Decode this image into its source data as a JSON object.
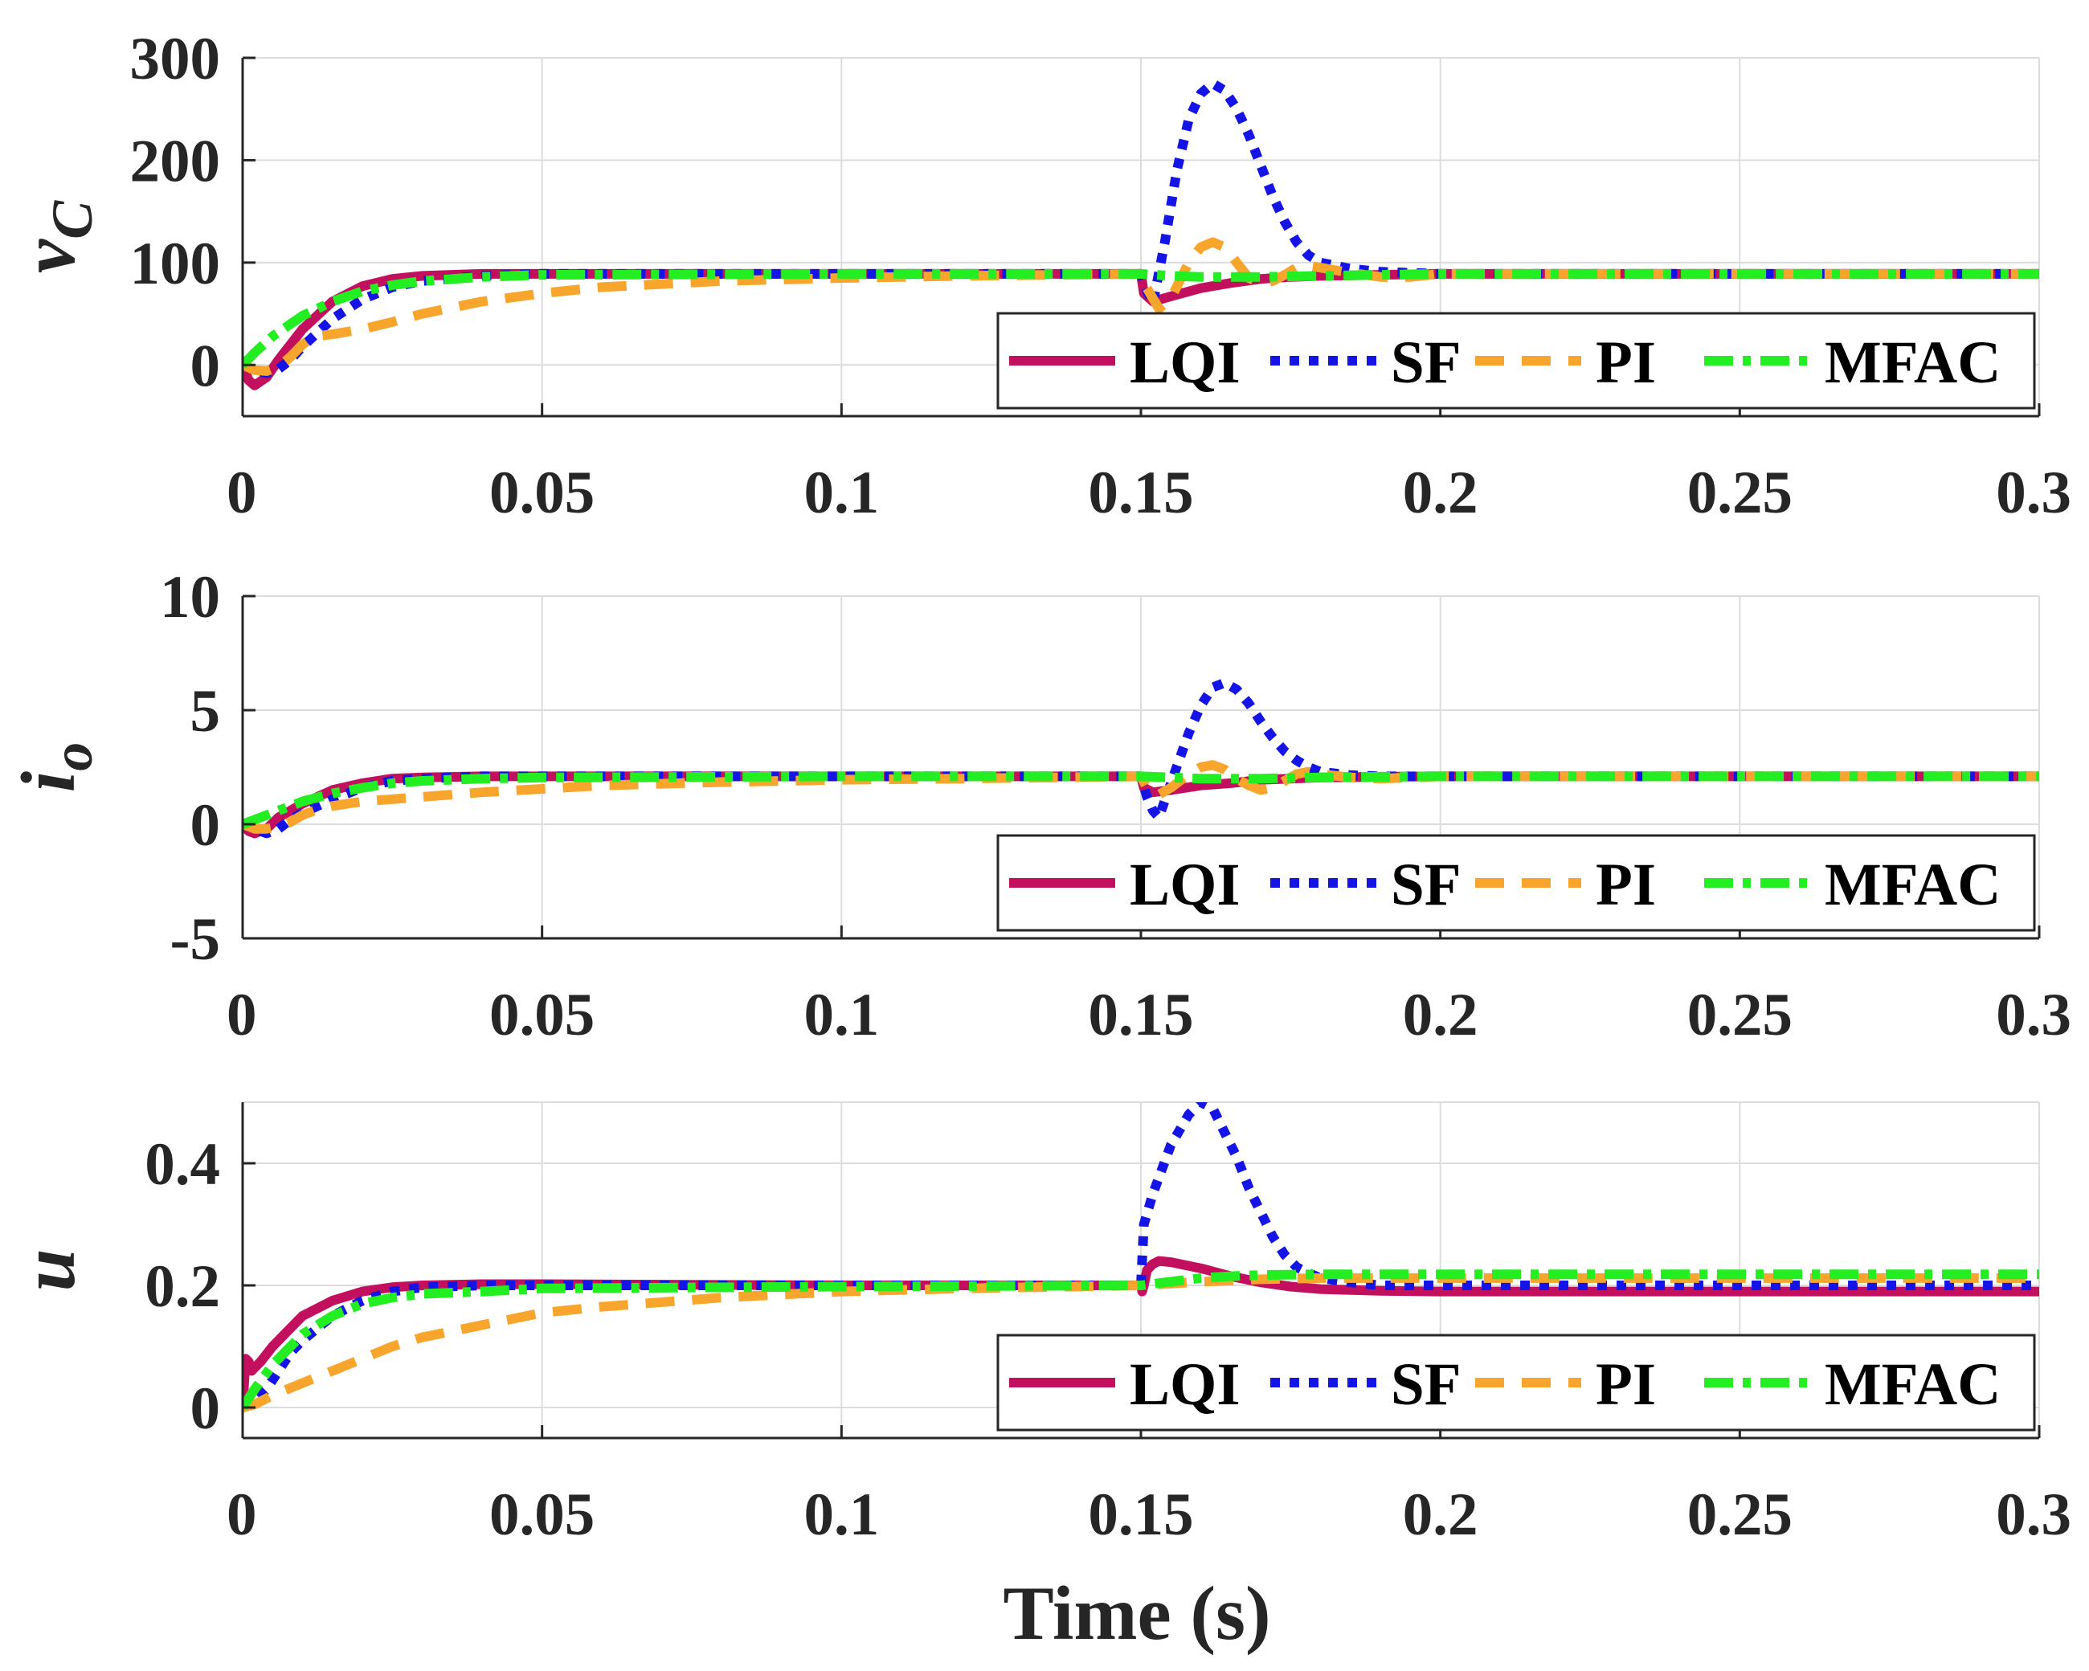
{
  "chart_data": {
    "type": "line",
    "xlabel": "Time (s)",
    "x_unit": "s",
    "xlim": [
      0,
      0.3
    ],
    "xticks": [
      0,
      0.05,
      0.1,
      0.15,
      0.2,
      0.25,
      0.3
    ],
    "xtick_labels": [
      "0",
      "0.05",
      "0.1",
      "0.15",
      "0.2",
      "0.25",
      "0.3"
    ],
    "grid": true,
    "legend": {
      "position": "bottom-right",
      "entries": [
        "LQI",
        "SF",
        "PI",
        "MFAC"
      ]
    },
    "series_styles": {
      "LQI": {
        "color": "#C2105F",
        "dash": "solid"
      },
      "SF": {
        "color": "#1414E6",
        "dash": "dotted"
      },
      "PI": {
        "color": "#F7A52C",
        "dash": "dashed"
      },
      "MFAC": {
        "color": "#22EE22",
        "dash": "dashdot"
      }
    },
    "subplots": [
      {
        "ylabel": "v",
        "ylabel_sub": "C",
        "ylim": [
          -50,
          300
        ],
        "yticks": [
          0,
          100,
          200,
          300
        ],
        "ytick_labels": [
          "0",
          "100",
          "200",
          "300"
        ],
        "series": [
          {
            "name": "LQI",
            "x": [
              0,
              0.001,
              0.002,
              0.004,
              0.006,
              0.01,
              0.015,
              0.02,
              0.025,
              0.03,
              0.04,
              0.05,
              0.1,
              0.15,
              0.1505,
              0.152,
              0.155,
              0.16,
              0.165,
              0.17,
              0.175,
              0.18,
              0.19,
              0.2,
              0.25,
              0.3
            ],
            "y": [
              0,
              -15,
              -20,
              -12,
              5,
              35,
              62,
              77,
              84,
              87,
              89,
              89,
              89,
              89,
              70,
              62,
              67,
              75,
              80,
              84,
              86,
              87,
              88,
              89,
              89,
              89
            ]
          },
          {
            "name": "SF",
            "x": [
              0,
              0.002,
              0.004,
              0.006,
              0.008,
              0.01,
              0.015,
              0.02,
              0.025,
              0.03,
              0.04,
              0.05,
              0.1,
              0.15,
              0.151,
              0.152,
              0.154,
              0.156,
              0.158,
              0.16,
              0.162,
              0.164,
              0.166,
              0.168,
              0.17,
              0.172,
              0.174,
              0.176,
              0.178,
              0.18,
              0.185,
              0.19,
              0.2,
              0.25,
              0.3
            ],
            "y": [
              0,
              -5,
              -8,
              -4,
              5,
              18,
              45,
              64,
              76,
              82,
              87,
              89,
              89,
              89,
              72,
              60,
              120,
              190,
              240,
              265,
              275,
              268,
              250,
              225,
              195,
              165,
              140,
              120,
              107,
              100,
              94,
              91,
              89,
              89,
              89
            ]
          },
          {
            "name": "PI",
            "x": [
              0,
              0.002,
              0.004,
              0.006,
              0.008,
              0.01,
              0.012,
              0.015,
              0.02,
              0.025,
              0.03,
              0.04,
              0.05,
              0.06,
              0.08,
              0.1,
              0.12,
              0.15,
              0.151,
              0.153,
              0.155,
              0.158,
              0.16,
              0.162,
              0.164,
              0.166,
              0.168,
              0.17,
              0.172,
              0.174,
              0.176,
              0.178,
              0.18,
              0.185,
              0.19,
              0.195,
              0.2,
              0.25,
              0.3
            ],
            "y": [
              0,
              -5,
              -6,
              -2,
              8,
              20,
              28,
              30,
              35,
              42,
              50,
              62,
              70,
              76,
              82,
              85,
              87,
              89,
              75,
              55,
              65,
              100,
              115,
              120,
              115,
              100,
              85,
              80,
              82,
              88,
              95,
              97,
              95,
              90,
              86,
              86,
              89,
              89,
              89
            ]
          },
          {
            "name": "MFAC",
            "x": [
              0,
              0.002,
              0.005,
              0.01,
              0.015,
              0.02,
              0.025,
              0.03,
              0.04,
              0.05,
              0.1,
              0.15,
              0.155,
              0.16,
              0.17,
              0.18,
              0.19,
              0.2,
              0.25,
              0.3
            ],
            "y": [
              0,
              12,
              28,
              48,
              62,
              72,
              78,
              82,
              86,
              88,
              89,
              89,
              87,
              86,
              86,
              87,
              88,
              89,
              89,
              89
            ]
          }
        ]
      },
      {
        "ylabel": "i",
        "ylabel_sub": "o",
        "ylim": [
          -5,
          10
        ],
        "yticks": [
          -5,
          0,
          5,
          10
        ],
        "ytick_labels": [
          "-5",
          "0",
          "5",
          "10"
        ],
        "series": [
          {
            "name": "LQI",
            "x": [
              0,
              0.001,
              0.002,
              0.004,
              0.006,
              0.01,
              0.015,
              0.02,
              0.025,
              0.03,
              0.04,
              0.05,
              0.1,
              0.15,
              0.1505,
              0.152,
              0.155,
              0.16,
              0.165,
              0.17,
              0.175,
              0.18,
              0.19,
              0.2,
              0.25,
              0.3
            ],
            "y": [
              0,
              -0.3,
              -0.4,
              -0.2,
              0.3,
              0.9,
              1.5,
              1.8,
              2.0,
              2.05,
              2.1,
              2.1,
              2.1,
              2.1,
              1.6,
              1.4,
              1.5,
              1.7,
              1.8,
              1.95,
              2.0,
              2.05,
              2.08,
              2.1,
              2.1,
              2.1
            ]
          },
          {
            "name": "SF",
            "x": [
              0,
              0.002,
              0.004,
              0.006,
              0.008,
              0.01,
              0.015,
              0.02,
              0.025,
              0.03,
              0.04,
              0.05,
              0.1,
              0.15,
              0.151,
              0.152,
              0.153,
              0.155,
              0.158,
              0.16,
              0.162,
              0.164,
              0.166,
              0.168,
              0.17,
              0.172,
              0.174,
              0.176,
              0.178,
              0.18,
              0.185,
              0.19,
              0.2,
              0.25,
              0.3
            ],
            "y": [
              0,
              -0.2,
              -0.4,
              -0.2,
              0.2,
              0.5,
              1.1,
              1.6,
              1.9,
              2.0,
              2.1,
              2.1,
              2.1,
              2.1,
              1.2,
              0.6,
              0.3,
              1.8,
              4.0,
              5.2,
              6.0,
              6.2,
              5.9,
              5.3,
              4.5,
              3.8,
              3.2,
              2.8,
              2.5,
              2.3,
              2.15,
              2.1,
              2.1,
              2.1,
              2.1
            ]
          },
          {
            "name": "PI",
            "x": [
              0,
              0.002,
              0.004,
              0.006,
              0.008,
              0.01,
              0.012,
              0.015,
              0.02,
              0.025,
              0.03,
              0.04,
              0.05,
              0.06,
              0.08,
              0.1,
              0.12,
              0.15,
              0.151,
              0.153,
              0.155,
              0.158,
              0.16,
              0.162,
              0.164,
              0.166,
              0.168,
              0.17,
              0.172,
              0.174,
              0.176,
              0.178,
              0.18,
              0.185,
              0.19,
              0.195,
              0.2,
              0.25,
              0.3
            ],
            "y": [
              0,
              -0.2,
              -0.2,
              -0.1,
              0.1,
              0.4,
              0.6,
              0.8,
              1.0,
              1.1,
              1.2,
              1.4,
              1.55,
              1.7,
              1.85,
              1.95,
              2.0,
              2.1,
              1.6,
              1.3,
              1.6,
              2.2,
              2.5,
              2.6,
              2.4,
              2.0,
              1.7,
              1.5,
              1.6,
              1.9,
              2.2,
              2.3,
              2.2,
              2.05,
              2.0,
              2.05,
              2.1,
              2.1,
              2.1
            ]
          },
          {
            "name": "MFAC",
            "x": [
              0,
              0.002,
              0.005,
              0.01,
              0.015,
              0.02,
              0.025,
              0.03,
              0.04,
              0.05,
              0.1,
              0.15,
              0.155,
              0.16,
              0.17,
              0.18,
              0.19,
              0.2,
              0.25,
              0.3
            ],
            "y": [
              0,
              0.2,
              0.5,
              1.0,
              1.35,
              1.6,
              1.8,
              1.9,
              2.0,
              2.05,
              2.1,
              2.1,
              2.05,
              2.0,
              2.0,
              2.05,
              2.08,
              2.1,
              2.1,
              2.1
            ]
          }
        ]
      },
      {
        "ylabel": "u",
        "ylabel_sub": "",
        "ylim": [
          -0.05,
          0.5
        ],
        "yticks": [
          0,
          0.2,
          0.4
        ],
        "ytick_labels": [
          "0",
          "0.2",
          "0.4"
        ],
        "series": [
          {
            "name": "LQI",
            "x": [
              0,
              0.0005,
              0.001,
              0.0015,
              0.002,
              0.003,
              0.005,
              0.008,
              0.01,
              0.015,
              0.02,
              0.025,
              0.03,
              0.04,
              0.05,
              0.1,
              0.15,
              0.1502,
              0.1505,
              0.151,
              0.152,
              0.153,
              0.155,
              0.16,
              0.165,
              0.17,
              0.175,
              0.18,
              0.19,
              0.2,
              0.25,
              0.3
            ],
            "y": [
              0,
              0.08,
              0.075,
              0.06,
              0.065,
              0.075,
              0.1,
              0.13,
              0.15,
              0.175,
              0.19,
              0.197,
              0.2,
              0.202,
              0.202,
              0.2,
              0.2,
              0.19,
              0.2,
              0.225,
              0.235,
              0.24,
              0.238,
              0.228,
              0.215,
              0.205,
              0.198,
              0.194,
              0.191,
              0.19,
              0.19,
              0.19
            ]
          },
          {
            "name": "SF",
            "x": [
              0,
              0.002,
              0.004,
              0.006,
              0.008,
              0.01,
              0.015,
              0.02,
              0.025,
              0.03,
              0.04,
              0.05,
              0.1,
              0.15,
              0.1505,
              0.152,
              0.155,
              0.158,
              0.16,
              0.162,
              0.164,
              0.166,
              0.168,
              0.17,
              0.172,
              0.174,
              0.176,
              0.178,
              0.18,
              0.185,
              0.19,
              0.2,
              0.25,
              0.3
            ],
            "y": [
              0,
              0.01,
              0.03,
              0.06,
              0.09,
              0.11,
              0.15,
              0.175,
              0.19,
              0.197,
              0.2,
              0.2,
              0.2,
              0.2,
              0.3,
              0.35,
              0.43,
              0.48,
              0.5,
              0.49,
              0.45,
              0.41,
              0.36,
              0.32,
              0.28,
              0.25,
              0.23,
              0.22,
              0.212,
              0.205,
              0.2,
              0.2,
              0.2,
              0.2
            ]
          },
          {
            "name": "PI",
            "x": [
              0,
              0.002,
              0.005,
              0.01,
              0.015,
              0.02,
              0.025,
              0.03,
              0.04,
              0.05,
              0.06,
              0.08,
              0.1,
              0.12,
              0.15,
              0.155,
              0.16,
              0.165,
              0.17,
              0.18,
              0.2,
              0.25,
              0.3
            ],
            "y": [
              0,
              0.005,
              0.02,
              0.04,
              0.06,
              0.08,
              0.1,
              0.115,
              0.135,
              0.155,
              0.165,
              0.18,
              0.19,
              0.195,
              0.2,
              0.203,
              0.206,
              0.208,
              0.21,
              0.212,
              0.212,
              0.212,
              0.212
            ]
          },
          {
            "name": "MFAC",
            "x": [
              0,
              0.002,
              0.005,
              0.01,
              0.015,
              0.02,
              0.025,
              0.03,
              0.04,
              0.05,
              0.1,
              0.15,
              0.155,
              0.16,
              0.165,
              0.17,
              0.18,
              0.2,
              0.25,
              0.3
            ],
            "y": [
              0,
              0.03,
              0.07,
              0.12,
              0.15,
              0.17,
              0.18,
              0.186,
              0.19,
              0.195,
              0.198,
              0.2,
              0.206,
              0.212,
              0.215,
              0.217,
              0.218,
              0.218,
              0.218,
              0.218
            ]
          }
        ]
      }
    ]
  }
}
